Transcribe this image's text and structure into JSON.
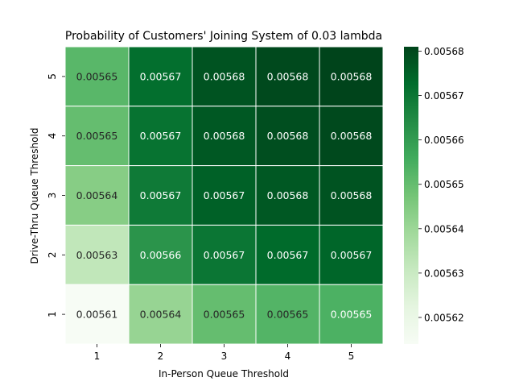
{
  "chart_data": {
    "type": "heatmap",
    "title": "Probability of Customers' Joining System of 0.03 lambda",
    "xlabel": "In-Person Queue Threshold",
    "ylabel": "Drive-Thru Queue Threshold",
    "x_categories": [
      "1",
      "2",
      "3",
      "4",
      "5"
    ],
    "y_categories": [
      "5",
      "4",
      "3",
      "2",
      "1"
    ],
    "values": [
      [
        0.005652,
        0.005672,
        0.005678,
        0.00568,
        0.005681
      ],
      [
        0.00565,
        0.005671,
        0.005677,
        0.005679,
        0.00568
      ],
      [
        0.005644,
        0.005669,
        0.005675,
        0.005677,
        0.005678
      ],
      [
        0.005632,
        0.005662,
        0.00567,
        0.005673,
        0.005674
      ],
      [
        0.005614,
        0.005641,
        0.00565,
        0.005653,
        0.005654
      ]
    ],
    "cell_labels": [
      [
        "0.00565",
        "0.00567",
        "0.00568",
        "0.00568",
        "0.00568"
      ],
      [
        "0.00565",
        "0.00567",
        "0.00568",
        "0.00568",
        "0.00568"
      ],
      [
        "0.00564",
        "0.00567",
        "0.00567",
        "0.00568",
        "0.00568"
      ],
      [
        "0.00563",
        "0.00566",
        "0.00567",
        "0.00567",
        "0.00567"
      ],
      [
        "0.00561",
        "0.00564",
        "0.00565",
        "0.00565",
        "0.00565"
      ]
    ],
    "colorbar": {
      "range": [
        0.005614,
        0.005681
      ],
      "ticks": [
        0.00562,
        0.00563,
        0.00564,
        0.00565,
        0.00566,
        0.00567,
        0.00568
      ],
      "tick_labels": [
        "0.00562",
        "0.00563",
        "0.00564",
        "0.00565",
        "0.00566",
        "0.00567",
        "0.00568"
      ]
    },
    "colormap": "Greens",
    "grid": false
  }
}
